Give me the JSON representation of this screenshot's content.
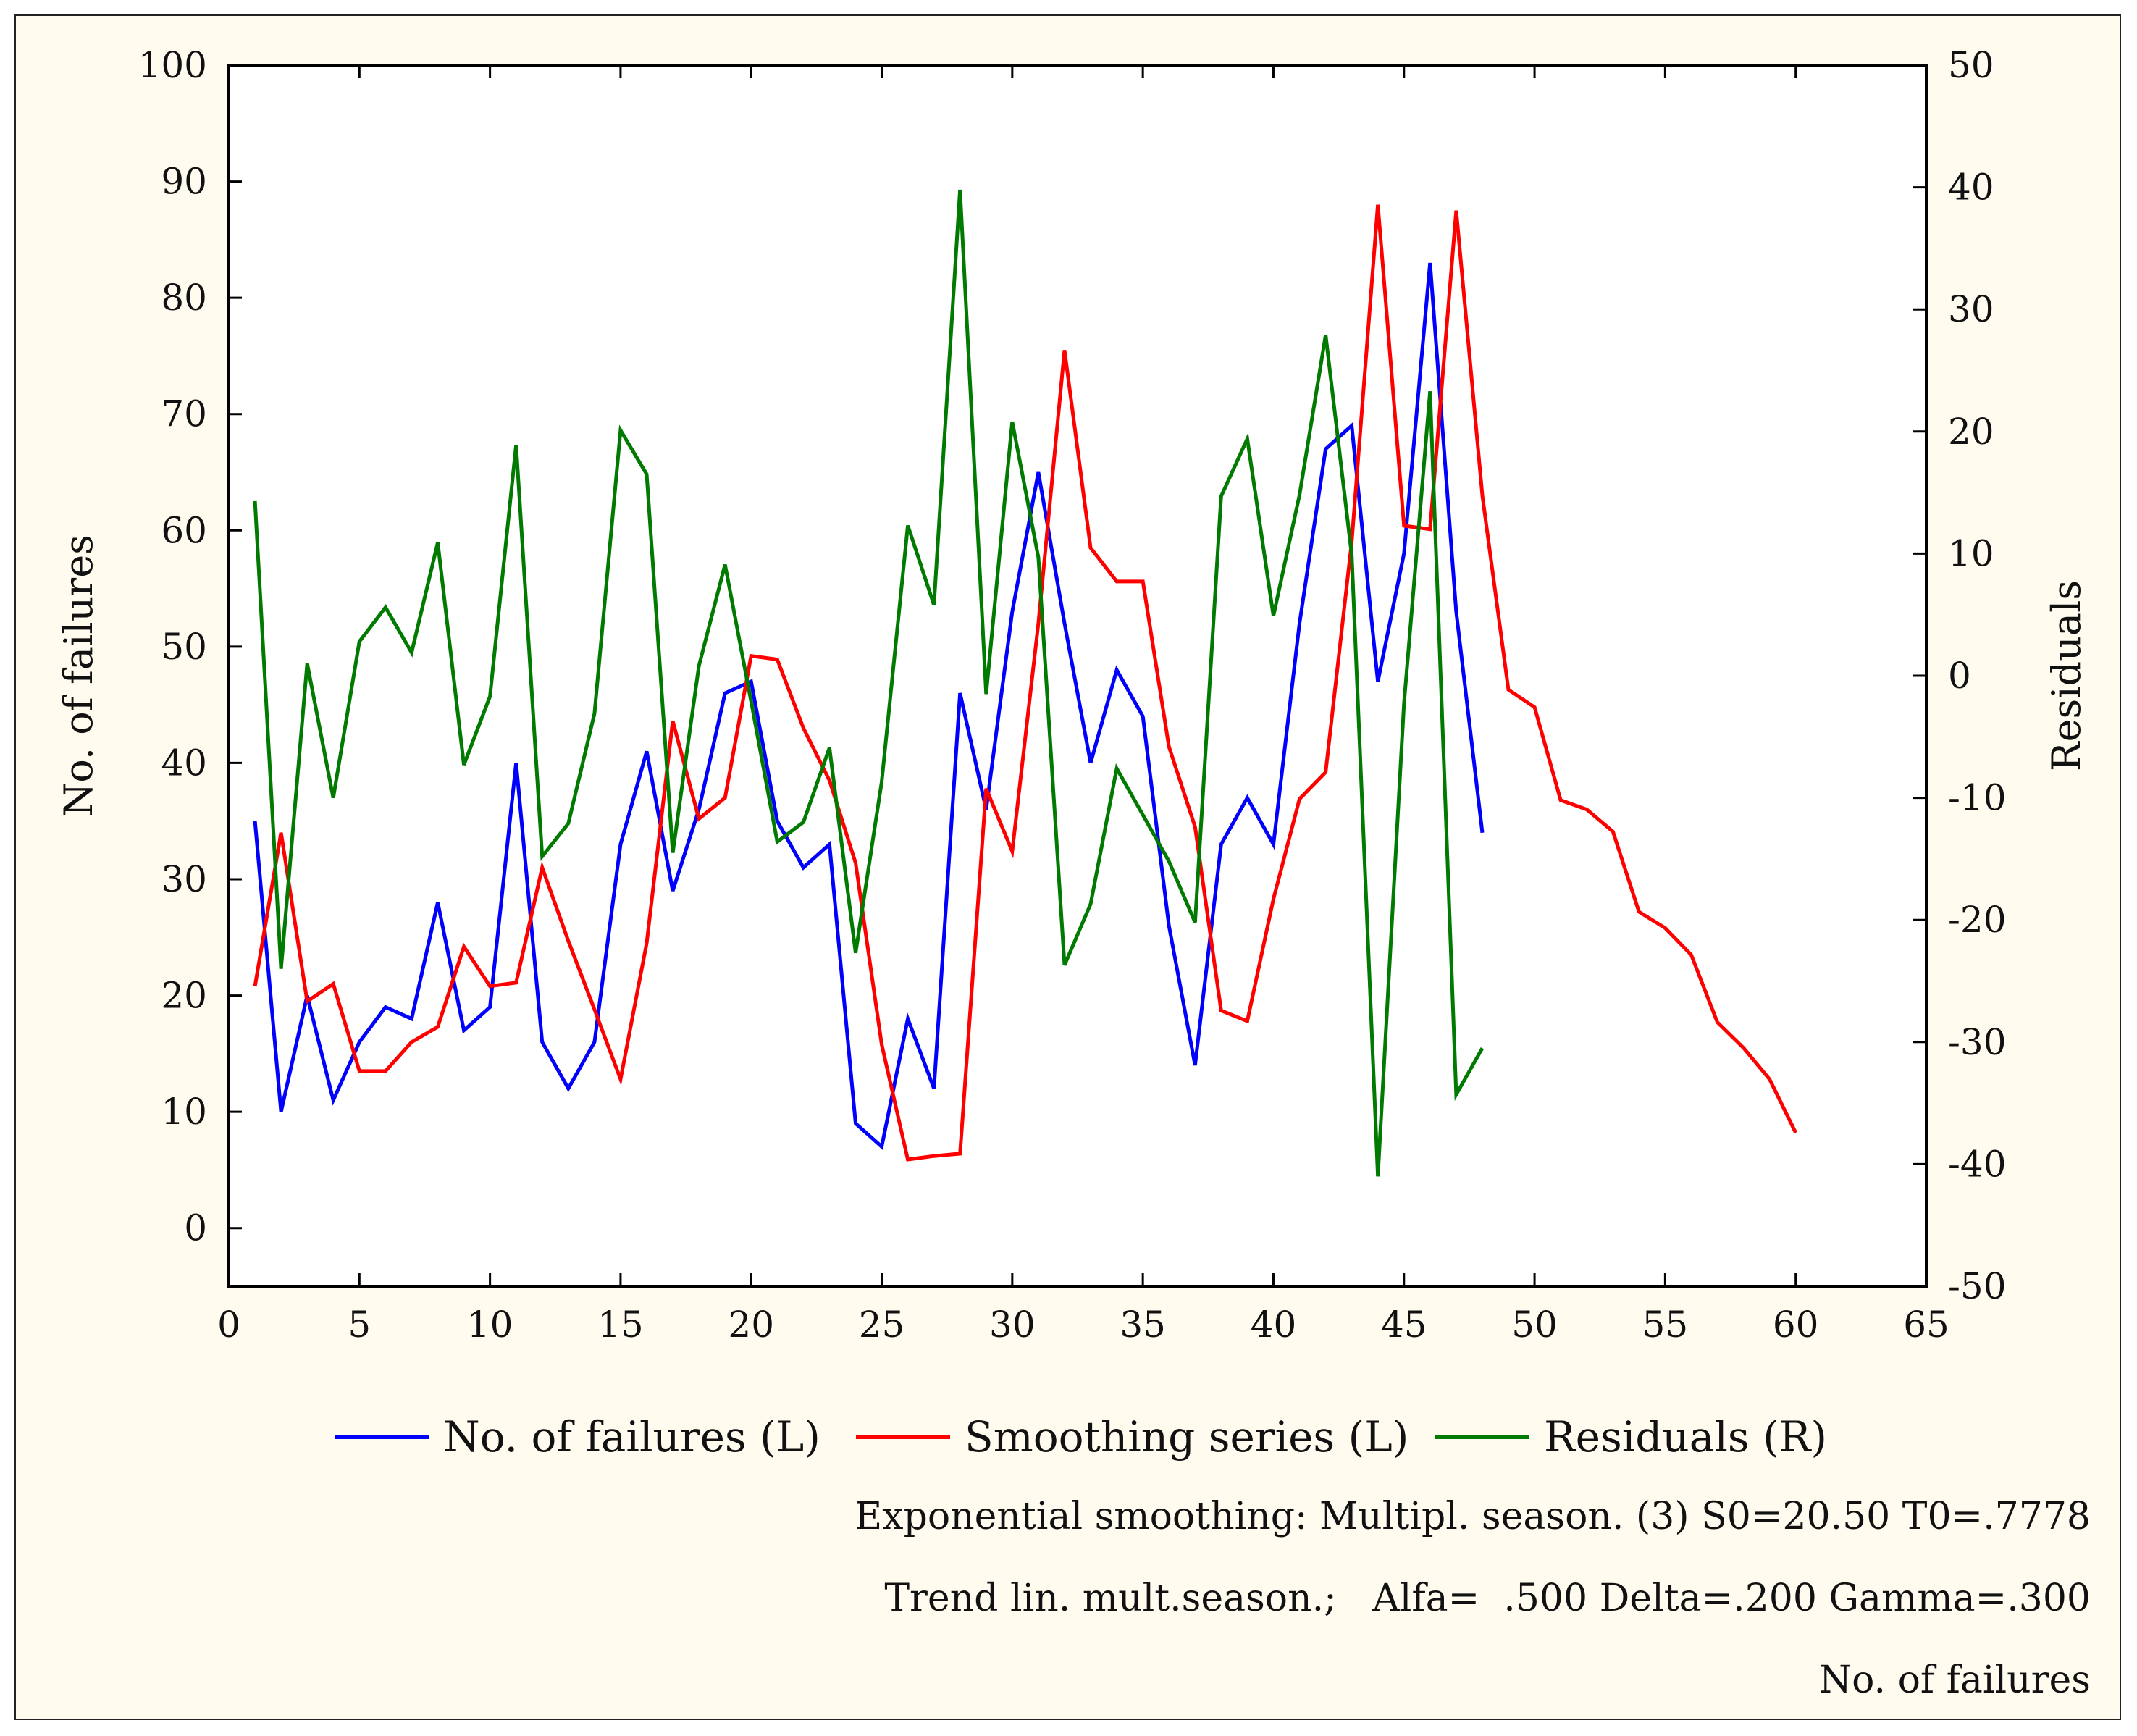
{
  "chart_data": {
    "type": "line",
    "title": "",
    "xlabel": "",
    "ylabel": "No. of failures",
    "ylabel_right": "Residuals",
    "xlim": [
      0,
      65
    ],
    "ylim": [
      -5,
      100
    ],
    "ylim_right": [
      -50,
      50
    ],
    "x_ticks": [
      0,
      5,
      10,
      15,
      20,
      25,
      30,
      35,
      40,
      45,
      50,
      55,
      60,
      65
    ],
    "y_ticks": [
      0,
      10,
      20,
      30,
      40,
      50,
      60,
      70,
      80,
      90,
      100
    ],
    "y_ticks_right": [
      -50,
      -40,
      -30,
      -20,
      -10,
      0,
      10,
      20,
      30,
      40,
      50
    ],
    "grid": false,
    "legend_position": "bottom",
    "series": [
      {
        "name": "No. of failures (L)",
        "axis": "left",
        "color": "#0000ff",
        "x": [
          1,
          2,
          3,
          4,
          5,
          6,
          7,
          8,
          9,
          10,
          11,
          12,
          13,
          14,
          15,
          16,
          17,
          18,
          19,
          20,
          21,
          22,
          23,
          24,
          25,
          26,
          27,
          28,
          29,
          30,
          31,
          32,
          33,
          34,
          35,
          36,
          37,
          38,
          39,
          40,
          41,
          42,
          43,
          44,
          45,
          46,
          47,
          48
        ],
        "values": [
          35,
          10,
          20,
          11,
          16,
          19,
          18,
          28,
          17,
          19,
          40,
          16,
          12,
          16,
          33,
          41,
          29,
          36,
          46,
          47,
          35,
          31,
          33,
          9,
          7,
          18,
          12,
          46,
          36,
          53,
          65,
          52,
          40,
          48,
          44,
          26,
          14,
          33,
          37,
          33,
          52,
          67,
          69,
          47,
          58,
          83,
          53,
          34
        ]
      },
      {
        "name": "Smoothing series (L)",
        "axis": "left",
        "color": "#ff0000",
        "x": [
          1,
          2,
          3,
          4,
          5,
          6,
          7,
          8,
          9,
          10,
          11,
          12,
          13,
          14,
          15,
          16,
          17,
          18,
          19,
          20,
          21,
          22,
          23,
          24,
          25,
          26,
          27,
          28,
          29,
          30,
          31,
          32,
          33,
          34,
          35,
          36,
          37,
          38,
          39,
          40,
          41,
          42,
          43,
          44,
          45,
          46,
          47,
          48,
          49,
          50,
          51,
          52,
          53,
          54,
          55,
          56,
          57,
          58,
          59,
          60
        ],
        "values": [
          20.8,
          34,
          19.5,
          21,
          13.5,
          13.5,
          16,
          17.3,
          24.2,
          20.8,
          21.1,
          31,
          24.7,
          18.8,
          12.8,
          24.5,
          43.6,
          35.2,
          37,
          49.2,
          48.9,
          43,
          38.5,
          31.4,
          15.8,
          5.9,
          6.2,
          6.4,
          37.8,
          32.4,
          52,
          75.5,
          58.5,
          55.6,
          55.6,
          41.4,
          34.5,
          18.7,
          17.8,
          28.3,
          36.9,
          39.2,
          59,
          88,
          60.4,
          60.1,
          87.5,
          63,
          46.3,
          44.8,
          36.8,
          36,
          34.1,
          27.2,
          25.8,
          23.5,
          17.7,
          15.5,
          12.8,
          8.2
        ]
      },
      {
        "name": "Residuals (R)",
        "axis": "right",
        "color": "#007a00",
        "x": [
          1,
          2,
          3,
          4,
          5,
          6,
          7,
          8,
          9,
          10,
          11,
          12,
          13,
          14,
          15,
          16,
          17,
          18,
          19,
          20,
          21,
          22,
          23,
          24,
          25,
          26,
          27,
          28,
          29,
          30,
          31,
          32,
          33,
          34,
          35,
          36,
          37,
          38,
          39,
          40,
          41,
          42,
          43,
          44,
          45,
          46,
          47,
          48
        ],
        "values": [
          14.3,
          -24,
          1,
          -10,
          2.8,
          5.6,
          1.9,
          10.9,
          -7.3,
          -1.7,
          18.9,
          -14.8,
          -12.1,
          -3.1,
          20.1,
          16.5,
          -14.5,
          0.8,
          9.1,
          -2.1,
          -13.6,
          -12,
          -5.9,
          -22.7,
          -8.7,
          12.3,
          5.8,
          39.8,
          -1.5,
          20.8,
          9.7,
          -23.7,
          -18.7,
          -7.6,
          -11.4,
          -15.2,
          -20.2,
          14.7,
          19.4,
          4.9,
          14.8,
          27.9,
          9.9,
          -41,
          -2.3,
          23.3,
          -34.3,
          -30.5
        ]
      }
    ]
  },
  "captions": {
    "line1": "Exponential smoothing: Multipl. season. (3) S0=20.50 T0=.7778",
    "line2": "Trend lin. mult.season.;   Alfa=  .500 Delta=.200 Gamma=.300",
    "line3": "No. of failures"
  }
}
